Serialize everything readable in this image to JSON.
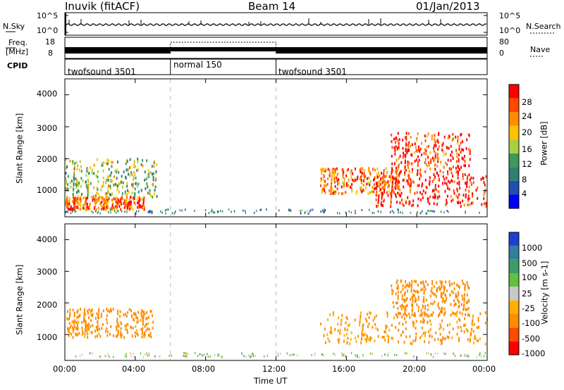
{
  "header": {
    "station": "Inuvik (fitACF)",
    "beam": "Beam 14",
    "date": "01/Jan/2013"
  },
  "strip_labels": {
    "nsky": "N.Sky",
    "nsearch": "N.Search",
    "freq_line1": "Freq.",
    "freq_line2": "[MHz]",
    "cpid": "CPID",
    "nave": "Nave",
    "sky_ticks": [
      "10^5",
      "10^0"
    ],
    "search_ticks": [
      "10^5",
      "10^0"
    ],
    "freq_ticks": [
      "18",
      "8"
    ],
    "nave_ticks": [
      "80",
      "0"
    ]
  },
  "cpid_segments": [
    {
      "label": "twofsound 3501",
      "start": 0,
      "end": 6
    },
    {
      "label": "normal 150",
      "start": 6,
      "end": 12
    },
    {
      "label": "twofsound 3501",
      "start": 12,
      "end": 24
    }
  ],
  "panels": {
    "ylabel": "Slant Range [km]",
    "y_ticks": [
      "4000",
      "3000",
      "2000",
      "1000"
    ],
    "x_ticks": [
      "00:00",
      "04:00",
      "08:00",
      "12:00",
      "16:00",
      "20:00",
      "00:00"
    ],
    "xlabel": "Time UT"
  },
  "power_colorbar": {
    "label": "Power [dB]",
    "ticks": [
      "28",
      "24",
      "20",
      "16",
      "12",
      "8",
      "4"
    ],
    "colors": [
      "#0000ff",
      "#1f4fb0",
      "#2f7f6f",
      "#3c9a5a",
      "#a8d040",
      "#ffc000",
      "#ff8c00",
      "#ff4a00",
      "#ff0000"
    ]
  },
  "velocity_colorbar": {
    "label": "Velocity [m s-1]",
    "ticks": [
      "1000",
      "500",
      "100",
      "25",
      "-25",
      "-100",
      "-500",
      "-1000"
    ],
    "colors": [
      "#1f3fd0",
      "#2f7fa0",
      "#3f9a6a",
      "#60c040",
      "#c8c8c8",
      "#ffb000",
      "#ff8c00",
      "#ff4a00",
      "#ff0000"
    ]
  },
  "chart_data": {
    "type": "heatmap",
    "title": "Beam 14",
    "x_range_hours": [
      0,
      24
    ],
    "y_range_km": [
      180,
      4500
    ],
    "power_echo_regions": [
      {
        "t0": 0.0,
        "t1": 5.2,
        "r0": 800,
        "r1": 2000,
        "power_db": 14
      },
      {
        "t0": 0.0,
        "t1": 4.5,
        "r0": 400,
        "r1": 800,
        "power_db": 24
      },
      {
        "t0": 14.5,
        "t1": 19.0,
        "r0": 900,
        "r1": 1700,
        "power_db": 22
      },
      {
        "t0": 17.5,
        "t1": 24.0,
        "r0": 500,
        "r1": 1500,
        "power_db": 28
      },
      {
        "t0": 18.5,
        "t1": 23.0,
        "r0": 1500,
        "r1": 2800,
        "power_db": 26
      }
    ],
    "velocity_echo_regions": [
      {
        "t0": 0.0,
        "t1": 5.0,
        "r0": 900,
        "r1": 1800,
        "velocity": -200
      },
      {
        "t0": 14.5,
        "t1": 24.0,
        "r0": 700,
        "r1": 1700,
        "velocity": -150
      },
      {
        "t0": 18.5,
        "t1": 23.0,
        "r0": 1600,
        "r1": 2700,
        "velocity": -300
      }
    ]
  }
}
